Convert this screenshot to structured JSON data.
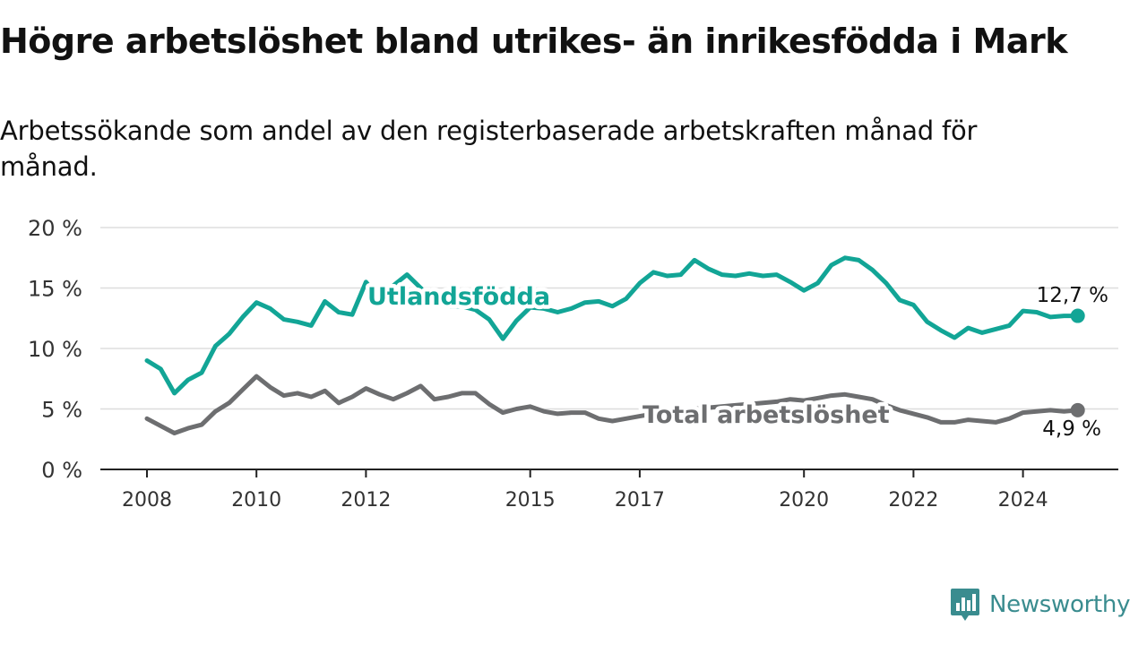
{
  "title": "Högre arbetslöshet bland utrikes- än inrikesfödda i Mark",
  "subtitle": "Arbetssökande som andel av den registerbaserade arbetskraften månad för månad.",
  "brand": {
    "name": "Newsworthy",
    "color": "#3a8c8f",
    "icon": "bar-chart-bubble-icon"
  },
  "colors": {
    "utlandsfodda": "#12a596",
    "total": "#6d6e70",
    "grid": "#dddddd",
    "axis": "#222222"
  },
  "chart_data": {
    "type": "line",
    "title": "Högre arbetslöshet bland utrikes- än inrikesfödda i Mark",
    "ylim": [
      0,
      20
    ],
    "y_ticks": [
      0,
      5,
      10,
      15,
      20
    ],
    "y_tick_labels": [
      "0 %",
      "5 %",
      "10 %",
      "15 %",
      "20 %"
    ],
    "x_ticks": [
      2008,
      2010,
      2012,
      2015,
      2017,
      2020,
      2022,
      2024
    ],
    "x_tick_labels": [
      "2008",
      "2010",
      "2012",
      "2015",
      "2017",
      "2020",
      "2022",
      "2024"
    ],
    "grid": true,
    "legend": "inline labels",
    "series": [
      {
        "name": "Utlandsfödda",
        "end_label": "12,7 %",
        "points": [
          [
            "2008-01",
            9.0
          ],
          [
            "2008-04",
            8.3
          ],
          [
            "2008-07",
            6.3
          ],
          [
            "2008-10",
            7.4
          ],
          [
            "2009-01",
            8.0
          ],
          [
            "2009-04",
            10.2
          ],
          [
            "2009-07",
            11.2
          ],
          [
            "2009-10",
            12.6
          ],
          [
            "2010-01",
            13.8
          ],
          [
            "2010-04",
            13.3
          ],
          [
            "2010-07",
            12.4
          ],
          [
            "2010-10",
            12.2
          ],
          [
            "2011-01",
            11.9
          ],
          [
            "2011-04",
            13.9
          ],
          [
            "2011-07",
            13.0
          ],
          [
            "2011-10",
            12.8
          ],
          [
            "2012-01",
            15.5
          ],
          [
            "2012-04",
            14.0
          ],
          [
            "2012-07",
            15.2
          ],
          [
            "2012-10",
            16.1
          ],
          [
            "2013-01",
            15.0
          ],
          [
            "2013-04",
            13.8
          ],
          [
            "2013-07",
            13.5
          ],
          [
            "2013-10",
            13.5
          ],
          [
            "2014-01",
            13.2
          ],
          [
            "2014-04",
            12.4
          ],
          [
            "2014-07",
            10.8
          ],
          [
            "2014-10",
            12.3
          ],
          [
            "2015-01",
            13.4
          ],
          [
            "2015-04",
            13.3
          ],
          [
            "2015-07",
            13.0
          ],
          [
            "2015-10",
            13.3
          ],
          [
            "2016-01",
            13.8
          ],
          [
            "2016-04",
            13.9
          ],
          [
            "2016-07",
            13.5
          ],
          [
            "2016-10",
            14.1
          ],
          [
            "2017-01",
            15.4
          ],
          [
            "2017-04",
            16.3
          ],
          [
            "2017-07",
            16.0
          ],
          [
            "2017-10",
            16.1
          ],
          [
            "2018-01",
            17.3
          ],
          [
            "2018-04",
            16.6
          ],
          [
            "2018-07",
            16.1
          ],
          [
            "2018-10",
            16.0
          ],
          [
            "2019-01",
            16.2
          ],
          [
            "2019-04",
            16.0
          ],
          [
            "2019-07",
            16.1
          ],
          [
            "2019-10",
            15.5
          ],
          [
            "2020-01",
            14.8
          ],
          [
            "2020-04",
            15.4
          ],
          [
            "2020-07",
            16.9
          ],
          [
            "2020-10",
            17.5
          ],
          [
            "2021-01",
            17.3
          ],
          [
            "2021-04",
            16.5
          ],
          [
            "2021-07",
            15.4
          ],
          [
            "2021-10",
            14.0
          ],
          [
            "2022-01",
            13.6
          ],
          [
            "2022-04",
            12.2
          ],
          [
            "2022-07",
            11.5
          ],
          [
            "2022-10",
            10.9
          ],
          [
            "2023-01",
            11.7
          ],
          [
            "2023-04",
            11.3
          ],
          [
            "2023-07",
            11.6
          ],
          [
            "2023-10",
            11.9
          ],
          [
            "2024-01",
            13.1
          ],
          [
            "2024-04",
            13.0
          ],
          [
            "2024-07",
            12.6
          ],
          [
            "2024-10",
            12.7
          ],
          [
            "2025-01",
            12.7
          ]
        ]
      },
      {
        "name": "Total arbetslöshet",
        "end_label": "4,9 %",
        "points": [
          [
            "2008-01",
            4.2
          ],
          [
            "2008-04",
            3.6
          ],
          [
            "2008-07",
            3.0
          ],
          [
            "2008-10",
            3.4
          ],
          [
            "2009-01",
            3.7
          ],
          [
            "2009-04",
            4.8
          ],
          [
            "2009-07",
            5.5
          ],
          [
            "2009-10",
            6.6
          ],
          [
            "2010-01",
            7.7
          ],
          [
            "2010-04",
            6.8
          ],
          [
            "2010-07",
            6.1
          ],
          [
            "2010-10",
            6.3
          ],
          [
            "2011-01",
            6.0
          ],
          [
            "2011-04",
            6.5
          ],
          [
            "2011-07",
            5.5
          ],
          [
            "2011-10",
            6.0
          ],
          [
            "2012-01",
            6.7
          ],
          [
            "2012-04",
            6.2
          ],
          [
            "2012-07",
            5.8
          ],
          [
            "2012-10",
            6.3
          ],
          [
            "2013-01",
            6.9
          ],
          [
            "2013-04",
            5.8
          ],
          [
            "2013-07",
            6.0
          ],
          [
            "2013-10",
            6.3
          ],
          [
            "2014-01",
            6.3
          ],
          [
            "2014-04",
            5.4
          ],
          [
            "2014-07",
            4.7
          ],
          [
            "2014-10",
            5.0
          ],
          [
            "2015-01",
            5.2
          ],
          [
            "2015-04",
            4.8
          ],
          [
            "2015-07",
            4.6
          ],
          [
            "2015-10",
            4.7
          ],
          [
            "2016-01",
            4.7
          ],
          [
            "2016-04",
            4.2
          ],
          [
            "2016-07",
            4.0
          ],
          [
            "2016-10",
            4.2
          ],
          [
            "2017-01",
            4.4
          ],
          [
            "2017-04",
            4.6
          ],
          [
            "2017-07",
            4.7
          ],
          [
            "2017-10",
            4.8
          ],
          [
            "2018-01",
            5.0
          ],
          [
            "2018-04",
            5.1
          ],
          [
            "2018-07",
            5.2
          ],
          [
            "2018-10",
            5.3
          ],
          [
            "2019-01",
            5.4
          ],
          [
            "2019-04",
            5.5
          ],
          [
            "2019-07",
            5.6
          ],
          [
            "2019-10",
            5.8
          ],
          [
            "2020-01",
            5.7
          ],
          [
            "2020-04",
            5.9
          ],
          [
            "2020-07",
            6.1
          ],
          [
            "2020-10",
            6.2
          ],
          [
            "2021-01",
            6.0
          ],
          [
            "2021-04",
            5.8
          ],
          [
            "2021-07",
            5.3
          ],
          [
            "2021-10",
            4.9
          ],
          [
            "2022-01",
            4.6
          ],
          [
            "2022-04",
            4.3
          ],
          [
            "2022-07",
            3.9
          ],
          [
            "2022-10",
            3.9
          ],
          [
            "2023-01",
            4.1
          ],
          [
            "2023-04",
            4.0
          ],
          [
            "2023-07",
            3.9
          ],
          [
            "2023-10",
            4.2
          ],
          [
            "2024-01",
            4.7
          ],
          [
            "2024-04",
            4.8
          ],
          [
            "2024-07",
            4.9
          ],
          [
            "2024-10",
            4.8
          ],
          [
            "2025-01",
            4.9
          ]
        ]
      }
    ]
  }
}
